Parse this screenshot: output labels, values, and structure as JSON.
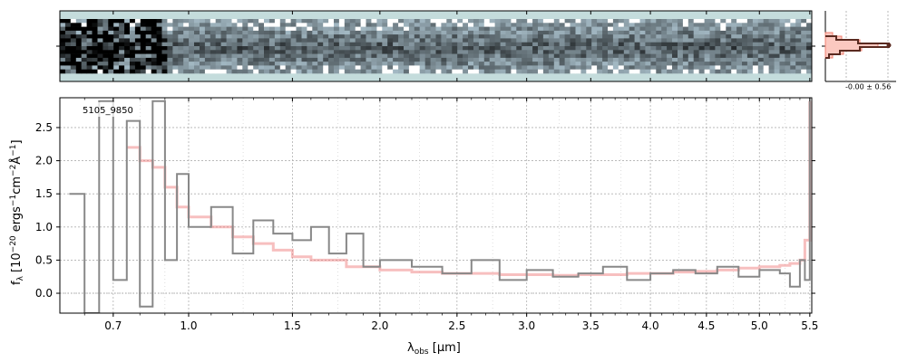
{
  "chart_data": {
    "type": "line",
    "object_label": "5105_9850",
    "xlabel_main": "λ",
    "xlabel_sub": "obs",
    "xlabel_unit": " [μm]",
    "ylabel_f": "f",
    "ylabel_sub": "λ",
    "ylabel_rest": " [10",
    "ylabel_exp1": "−20",
    "ylabel_mid": " ergs",
    "ylabel_exp2": "−1",
    "ylabel_mid2": "cm",
    "ylabel_exp3": "−2",
    "ylabel_mid3": "Å",
    "ylabel_exp4": "−1",
    "ylabel_end": "]",
    "x_ticks": [
      "0.7",
      "1.0",
      "1.5",
      "2.0",
      "2.5",
      "3.0",
      "3.5",
      "4.0",
      "4.5",
      "5.0",
      "5.5"
    ],
    "x_tick_values": [
      0.7,
      1.0,
      1.5,
      2.0,
      2.5,
      3.0,
      3.5,
      4.0,
      4.5,
      5.0,
      5.5
    ],
    "x_scale": "sqrt",
    "xlim": [
      0.52,
      5.52
    ],
    "y_ticks": [
      "0.0",
      "0.5",
      "1.0",
      "1.5",
      "2.0",
      "2.5"
    ],
    "y_tick_values": [
      0.0,
      0.5,
      1.0,
      1.5,
      2.0,
      2.5
    ],
    "ylim": [
      -0.3,
      2.95
    ],
    "grid": true,
    "hist_label": "-0.00 ± 0.56",
    "series": [
      {
        "color": "#888888",
        "style": "steps",
        "x": [
          0.55,
          0.6,
          0.65,
          0.7,
          0.75,
          0.8,
          0.85,
          0.9,
          0.95,
          1.0,
          1.1,
          1.2,
          1.3,
          1.4,
          1.5,
          1.6,
          1.7,
          1.8,
          1.9,
          2.0,
          2.2,
          2.4,
          2.6,
          2.8,
          3.0,
          3.2,
          3.4,
          3.6,
          3.8,
          4.0,
          4.2,
          4.4,
          4.6,
          4.8,
          5.0,
          5.2,
          5.3,
          5.4,
          5.45,
          5.5
        ],
        "y": [
          1.5,
          -0.3,
          2.9,
          0.2,
          2.6,
          -0.2,
          2.9,
          0.5,
          1.8,
          1.0,
          1.3,
          0.6,
          1.1,
          0.9,
          0.8,
          1.0,
          0.6,
          0.9,
          0.4,
          0.5,
          0.4,
          0.3,
          0.5,
          0.2,
          0.35,
          0.25,
          0.3,
          0.4,
          0.2,
          0.3,
          0.35,
          0.3,
          0.4,
          0.25,
          0.35,
          0.3,
          0.1,
          0.5,
          0.2,
          2.9
        ]
      },
      {
        "color": "#f08080",
        "style": "steps",
        "x": [
          0.75,
          0.8,
          0.85,
          0.9,
          0.95,
          1.0,
          1.1,
          1.2,
          1.3,
          1.4,
          1.5,
          1.6,
          1.8,
          2.0,
          2.2,
          2.4,
          2.6,
          2.8,
          3.0,
          3.2,
          3.4,
          3.6,
          3.8,
          4.0,
          4.2,
          4.4,
          4.6,
          4.8,
          5.0,
          5.2,
          5.3,
          5.4,
          5.45,
          5.5
        ],
        "y": [
          2.2,
          2.0,
          1.9,
          1.6,
          1.3,
          1.15,
          1.0,
          0.85,
          0.75,
          0.65,
          0.55,
          0.5,
          0.4,
          0.35,
          0.32,
          0.3,
          0.3,
          0.28,
          0.28,
          0.27,
          0.28,
          0.28,
          0.3,
          0.3,
          0.32,
          0.33,
          0.35,
          0.38,
          0.4,
          0.42,
          0.45,
          0.5,
          0.8,
          2.9
        ]
      }
    ]
  }
}
